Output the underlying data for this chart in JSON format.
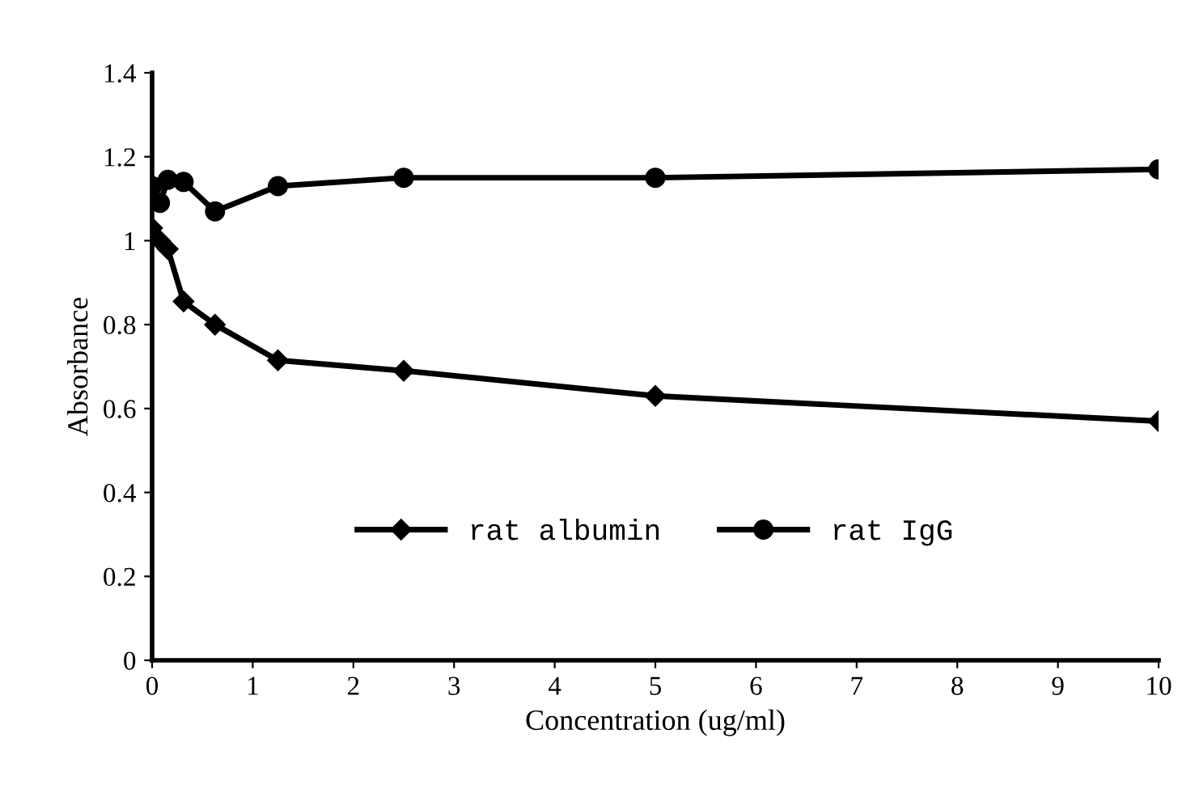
{
  "chart_data": {
    "type": "line",
    "xlabel": "Concentration (ug/ml)",
    "ylabel": "Absorbance",
    "series": [
      {
        "name": "rat albumin",
        "color": "#000000",
        "marker": "diamond",
        "x": [
          0,
          0.078,
          0.156,
          0.3125,
          0.625,
          1.25,
          2.5,
          5,
          10
        ],
        "values": [
          1.03,
          1.0,
          0.98,
          0.855,
          0.8,
          0.715,
          0.69,
          0.63,
          0.57
        ]
      },
      {
        "name": "rat IgG",
        "color": "#000000",
        "marker": "circle",
        "x": [
          0,
          0.078,
          0.156,
          0.3125,
          0.625,
          1.25,
          2.5,
          5,
          10
        ],
        "values": [
          1.13,
          1.09,
          1.145,
          1.14,
          1.07,
          1.13,
          1.15,
          1.15,
          1.17
        ]
      }
    ],
    "xlim": [
      0,
      10
    ],
    "xticks": [
      0,
      1,
      2,
      3,
      4,
      5,
      6,
      7,
      8,
      9,
      10
    ],
    "ylim": [
      0,
      1.4
    ],
    "yticks": [
      0,
      0.2,
      0.4,
      0.6,
      0.8,
      1,
      1.2,
      1.4
    ],
    "grid": false,
    "legend": "bottom",
    "line_style": "solid"
  }
}
